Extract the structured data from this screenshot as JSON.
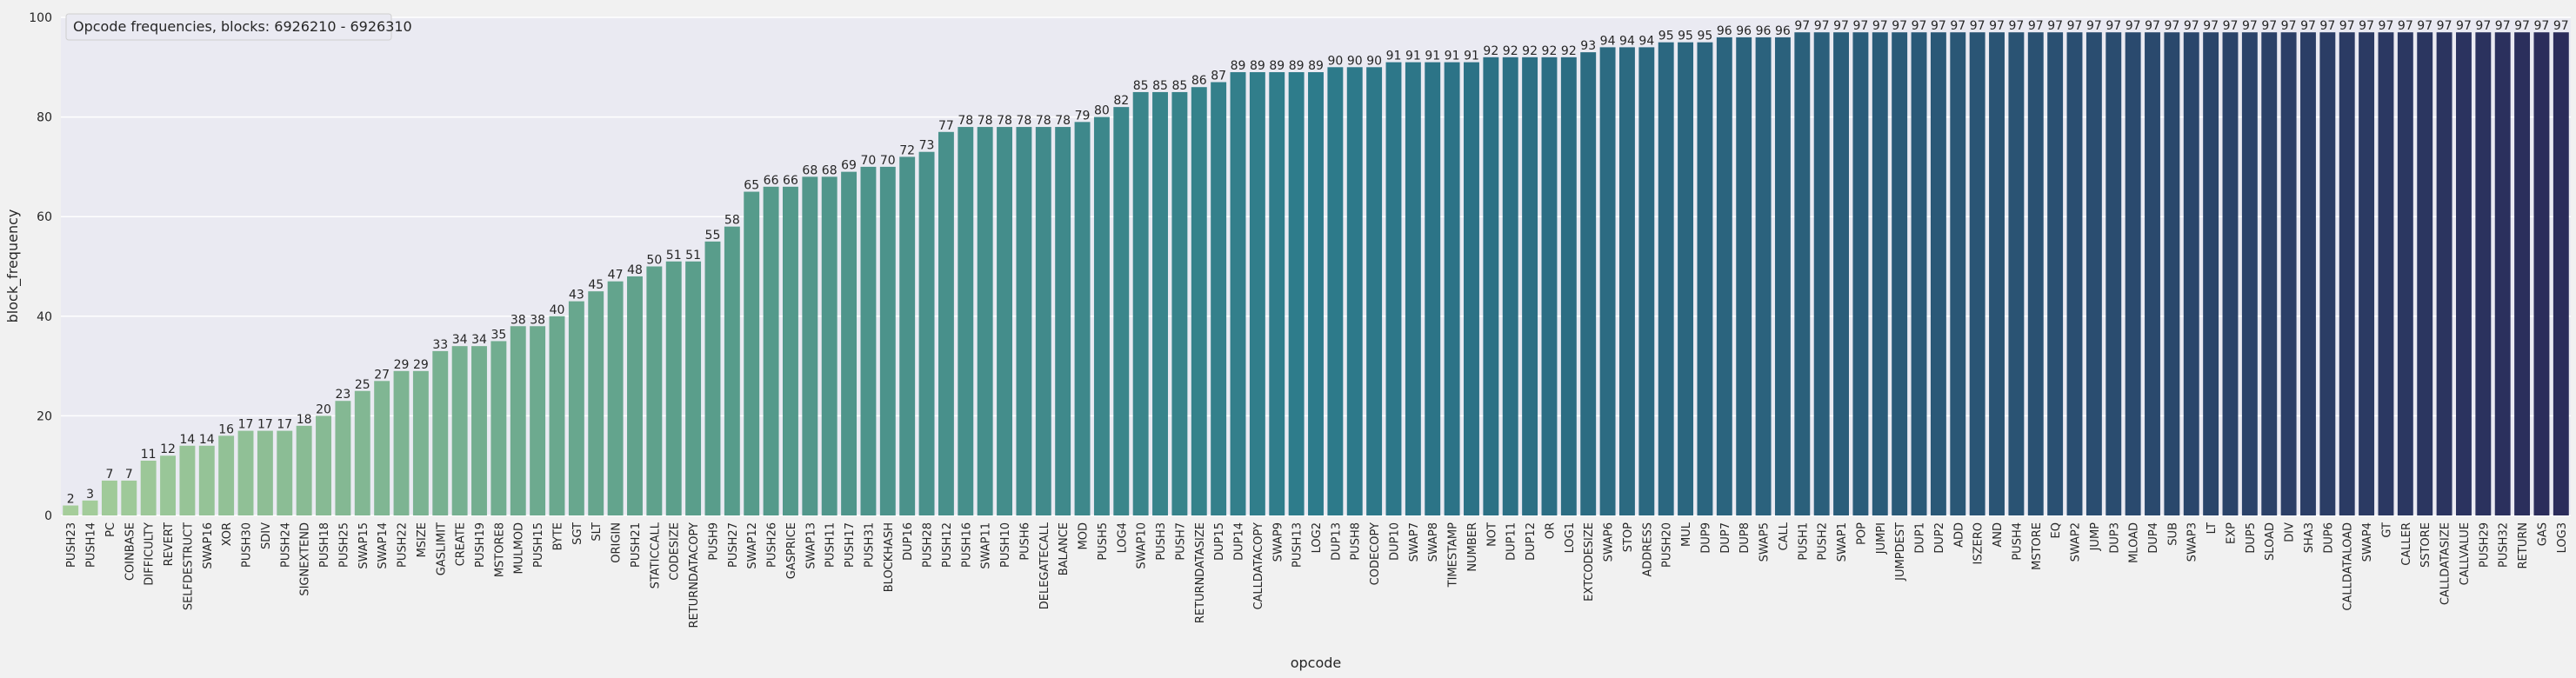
{
  "chart_data": {
    "type": "bar",
    "title": "",
    "legend_text": "Opcode frequencies, blocks: 6926210 - 6926310",
    "legend_position": "top-left",
    "xlabel": "opcode",
    "ylabel": "block_frequency",
    "ylim": [
      0,
      100
    ],
    "yticks": [
      0,
      20,
      40,
      60,
      80,
      100
    ],
    "grid": true,
    "palette": "crest",
    "categories": [
      "PUSH23",
      "PUSH14",
      "PC",
      "COINBASE",
      "DIFFICULTY",
      "REVERT",
      "SELFDESTRUCT",
      "SWAP16",
      "XOR",
      "PUSH30",
      "SDIV",
      "PUSH24",
      "SIGNEXTEND",
      "PUSH18",
      "PUSH25",
      "SWAP15",
      "SWAP14",
      "PUSH22",
      "MSIZE",
      "GASLIMIT",
      "CREATE",
      "PUSH19",
      "MSTORE8",
      "MULMOD",
      "PUSH15",
      "BYTE",
      "SGT",
      "SLT",
      "ORIGIN",
      "PUSH21",
      "STATICCALL",
      "CODESIZE",
      "RETURNDATACOPY",
      "PUSH9",
      "PUSH27",
      "SWAP12",
      "PUSH26",
      "GASPRICE",
      "SWAP13",
      "PUSH11",
      "PUSH17",
      "PUSH31",
      "BLOCKHASH",
      "DUP16",
      "PUSH28",
      "PUSH12",
      "PUSH16",
      "SWAP11",
      "PUSH10",
      "PUSH6",
      "DELEGATECALL",
      "BALANCE",
      "MOD",
      "PUSH5",
      "LOG4",
      "SWAP10",
      "PUSH3",
      "PUSH7",
      "RETURNDATASIZE",
      "DUP15",
      "DUP14",
      "CALLDATACOPY",
      "SWAP9",
      "PUSH13",
      "LOG2",
      "DUP13",
      "PUSH8",
      "CODECOPY",
      "DUP10",
      "SWAP7",
      "SWAP8",
      "TIMESTAMP",
      "NUMBER",
      "NOT",
      "DUP11",
      "DUP12",
      "OR",
      "LOG1",
      "EXTCODESIZE",
      "SWAP6",
      "STOP",
      "ADDRESS",
      "PUSH20",
      "MUL",
      "DUP9",
      "DUP7",
      "DUP8",
      "SWAP5",
      "CALL",
      "PUSH1",
      "PUSH2",
      "SWAP1",
      "POP",
      "JUMPI",
      "JUMPDEST",
      "DUP1",
      "DUP2",
      "ADD",
      "ISZERO",
      "AND",
      "PUSH4",
      "MSTORE",
      "EQ",
      "SWAP2",
      "JUMP",
      "DUP3",
      "MLOAD",
      "DUP4",
      "SUB",
      "SWAP3",
      "LT",
      "EXP",
      "DUP5",
      "SLOAD",
      "DIV",
      "SHA3",
      "DUP6",
      "CALLDATALOAD",
      "SWAP4",
      "GT",
      "CALLER",
      "SSTORE",
      "CALLDATASIZE",
      "CALLVALUE",
      "PUSH29",
      "PUSH32",
      "RETURN",
      "GAS",
      "LOG3"
    ],
    "values": [
      2,
      3,
      7,
      7,
      11,
      12,
      14,
      14,
      16,
      17,
      17,
      17,
      18,
      20,
      23,
      25,
      27,
      29,
      29,
      33,
      34,
      34,
      35,
      38,
      38,
      40,
      43,
      45,
      47,
      48,
      50,
      51,
      51,
      55,
      58,
      65,
      66,
      66,
      68,
      68,
      69,
      70,
      70,
      72,
      73,
      77,
      78,
      78,
      78,
      78,
      78,
      78,
      79,
      80,
      82,
      85,
      85,
      85,
      86,
      87,
      89,
      89,
      89,
      89,
      89,
      90,
      90,
      90,
      91,
      91,
      91,
      91,
      91,
      92,
      92,
      92,
      92,
      92,
      93,
      94,
      94,
      94,
      95,
      95,
      95,
      96,
      96,
      96,
      96,
      97,
      97,
      97,
      97,
      97,
      97,
      97,
      97,
      97,
      97,
      97,
      97,
      97,
      97,
      97,
      97,
      97,
      97,
      97,
      97,
      97,
      97,
      97,
      97,
      97,
      97,
      97,
      97,
      97,
      97,
      97,
      97,
      97,
      97,
      97,
      97,
      97,
      97,
      97,
      97
    ],
    "colors": {
      "start": "#a5cd9a",
      "mid1": "#5a9e8b",
      "mid2": "#2d7b8b",
      "mid3": "#2a5877",
      "end": "#2b2c5a"
    }
  }
}
